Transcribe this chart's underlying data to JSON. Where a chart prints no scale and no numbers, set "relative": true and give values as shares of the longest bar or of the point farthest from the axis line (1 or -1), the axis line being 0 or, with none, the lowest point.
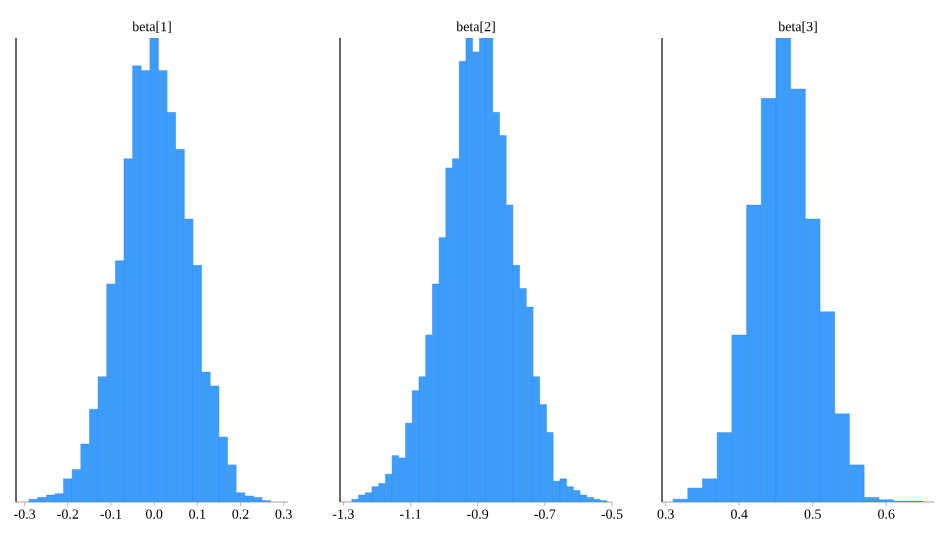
{
  "chart_data": [
    {
      "type": "bar",
      "title": "beta[1]",
      "relative": true,
      "tick_labels": "x",
      "color": "#3d9dfc",
      "x": [
        -0.28,
        -0.26,
        -0.24,
        -0.22,
        -0.2,
        -0.18,
        -0.16,
        -0.14,
        -0.12,
        -0.1,
        -0.08,
        -0.06,
        -0.04,
        -0.02,
        0.0,
        0.02,
        0.04,
        0.06,
        0.08,
        0.1,
        0.12,
        0.14,
        0.16,
        0.18,
        0.2,
        0.22,
        0.24,
        0.26
      ],
      "values": [
        0.006,
        0.01,
        0.015,
        0.018,
        0.05,
        0.07,
        0.125,
        0.2,
        0.27,
        0.47,
        0.52,
        0.74,
        0.94,
        0.93,
        1.0,
        0.93,
        0.84,
        0.76,
        0.61,
        0.51,
        0.28,
        0.25,
        0.14,
        0.08,
        0.02,
        0.013,
        0.01,
        0.003
      ],
      "xlim": [
        -0.32,
        0.31
      ],
      "xticks": [
        -0.3,
        -0.2,
        -0.1,
        {
          "value": 0,
          "label": "0.0"
        },
        0.1,
        0.2,
        0.3
      ]
    },
    {
      "type": "bar",
      "title": "beta[2]",
      "relative": true,
      "tick_labels": "x",
      "color": "#3d9dfc",
      "x": [
        -1.265,
        -1.245,
        -1.225,
        -1.205,
        -1.185,
        -1.165,
        -1.145,
        -1.125,
        -1.105,
        -1.085,
        -1.065,
        -1.045,
        -1.025,
        -1.005,
        -0.985,
        -0.965,
        -0.945,
        -0.925,
        -0.905,
        -0.885,
        -0.865,
        -0.845,
        -0.825,
        -0.805,
        -0.785,
        -0.765,
        -0.745,
        -0.725,
        -0.705,
        -0.685,
        -0.665,
        -0.645,
        -0.625,
        -0.605,
        -0.585,
        -0.565,
        -0.545,
        -0.525
      ],
      "values": [
        0.006,
        0.015,
        0.02,
        0.033,
        0.04,
        0.06,
        0.1,
        0.095,
        0.17,
        0.24,
        0.27,
        0.36,
        0.47,
        0.57,
        0.72,
        0.74,
        0.95,
        1.0,
        0.97,
        1.0,
        1.0,
        0.84,
        0.79,
        0.64,
        0.51,
        0.46,
        0.42,
        0.27,
        0.21,
        0.15,
        0.045,
        0.05,
        0.033,
        0.025,
        0.015,
        0.01,
        0.006,
        0.003
      ],
      "xlim": [
        -1.31,
        -0.5
      ],
      "xticks": [
        -1.3,
        -1.1,
        -0.9,
        -0.7,
        -0.5
      ]
    },
    {
      "type": "bar",
      "title": "beta[3]",
      "relative": true,
      "tick_labels": "x",
      "color": "#3d9dfc",
      "x": [
        0.32,
        0.34,
        0.36,
        0.38,
        0.4,
        0.42,
        0.44,
        0.46,
        0.48,
        0.5,
        0.52,
        0.54,
        0.56,
        0.58,
        0.6,
        0.62,
        0.64
      ],
      "values": [
        0.006,
        0.03,
        0.05,
        0.15,
        0.36,
        0.64,
        0.87,
        1.0,
        0.89,
        0.61,
        0.41,
        0.19,
        0.08,
        0.01,
        0.005,
        0.002,
        0.002
      ],
      "xlim": [
        0.295,
        0.665
      ],
      "xticks": [
        0.3,
        0.4,
        0.5,
        0.6
      ]
    }
  ]
}
